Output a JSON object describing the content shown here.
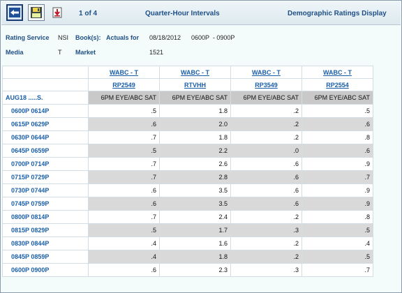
{
  "toolbar": {
    "page_indicator": "1 of 4",
    "title": "Quarter-Hour Intervals",
    "display_mode": "Demographic Ratings Display"
  },
  "info": {
    "rating_service_label": "Rating Service",
    "rating_service_value": "NSI",
    "books_label": "Book(s):",
    "books_value": "Actuals for",
    "date_value": "08/18/2012",
    "time_range": "0600P  - 0900P",
    "media_label": "Media",
    "media_value": "T",
    "market_label": "Market",
    "market_value": "1521"
  },
  "table": {
    "stations": [
      "WABC - T",
      "WABC - T",
      "WABC - T",
      "WABC - T"
    ],
    "programs": [
      "RP2549",
      "RTVHH",
      "RP3549",
      "RP2554"
    ],
    "corner_label": "AUG18 .....S.",
    "demo_headers": [
      "6PM EYE/ABC SAT",
      "6PM EYE/ABC SAT",
      "6PM EYE/ABC SAT",
      "6PM EYE/ABC SAT"
    ],
    "rows": [
      {
        "label": "0600P 0614P",
        "values": [
          ".5",
          "1.8",
          ".2",
          ".5"
        ]
      },
      {
        "label": "0615P 0629P",
        "values": [
          ".6",
          "2.0",
          ".2",
          ".6"
        ]
      },
      {
        "label": "0630P 0644P",
        "values": [
          ".7",
          "1.8",
          ".2",
          ".8"
        ]
      },
      {
        "label": "0645P 0659P",
        "values": [
          ".5",
          "2.2",
          ".0",
          ".6"
        ]
      },
      {
        "label": "0700P 0714P",
        "values": [
          ".7",
          "2.6",
          ".6",
          ".9"
        ]
      },
      {
        "label": "0715P 0729P",
        "values": [
          ".7",
          "2.8",
          ".6",
          ".7"
        ]
      },
      {
        "label": "0730P 0744P",
        "values": [
          ".6",
          "3.5",
          ".6",
          ".9"
        ]
      },
      {
        "label": "0745P 0759P",
        "values": [
          ".6",
          "3.5",
          ".6",
          ".9"
        ]
      },
      {
        "label": "0800P 0814P",
        "values": [
          ".7",
          "2.4",
          ".2",
          ".8"
        ]
      },
      {
        "label": "0815P 0829P",
        "values": [
          ".5",
          "1.7",
          ".3",
          ".5"
        ]
      },
      {
        "label": "0830P 0844P",
        "values": [
          ".4",
          "1.6",
          ".2",
          ".4"
        ]
      },
      {
        "label": "0845P 0859P",
        "values": [
          ".4",
          "1.8",
          ".2",
          ".5"
        ]
      },
      {
        "label": "0600P 0900P",
        "values": [
          ".6",
          "2.3",
          ".3",
          ".7"
        ]
      }
    ]
  },
  "icons": {
    "back": "back-arrow-icon",
    "save": "save-disk-icon",
    "export": "export-down-icon"
  },
  "colors": {
    "accent": "#1e4f86",
    "link": "#1a5fa8",
    "shade_row": "#d9d9d9",
    "header_gray": "#c9c9c9"
  }
}
